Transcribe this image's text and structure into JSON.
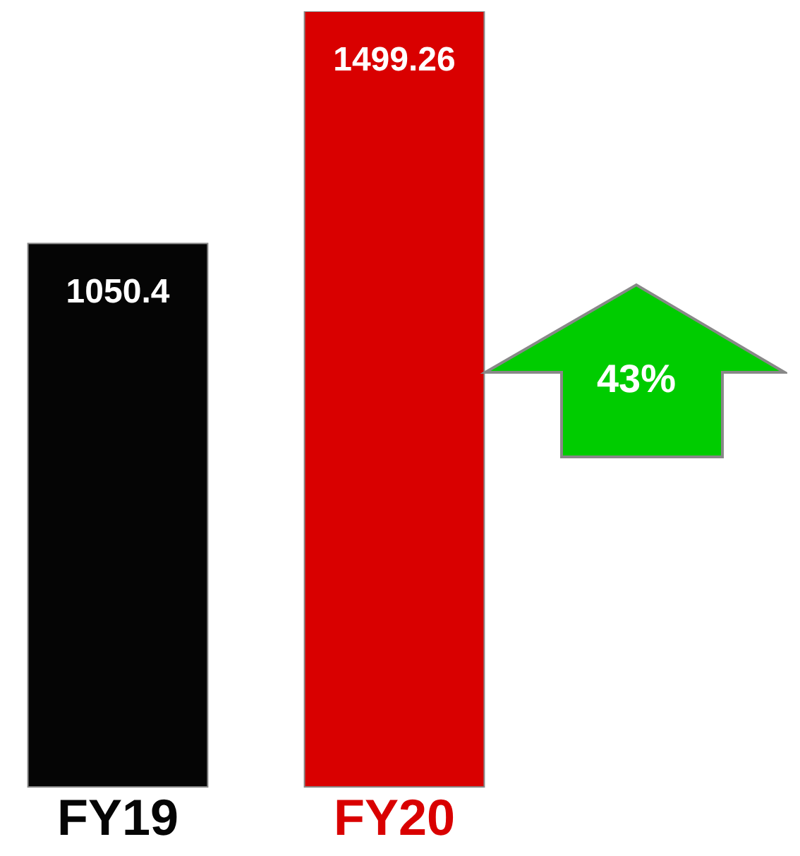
{
  "chart_data": {
    "type": "bar",
    "categories": [
      "FY19",
      "FY20"
    ],
    "values": [
      1050.4,
      1499.26
    ],
    "colors": [
      "#050505",
      "#d90000"
    ],
    "data_labels": true,
    "annotations": [
      "43%"
    ],
    "tick_labels": "x"
  }
}
